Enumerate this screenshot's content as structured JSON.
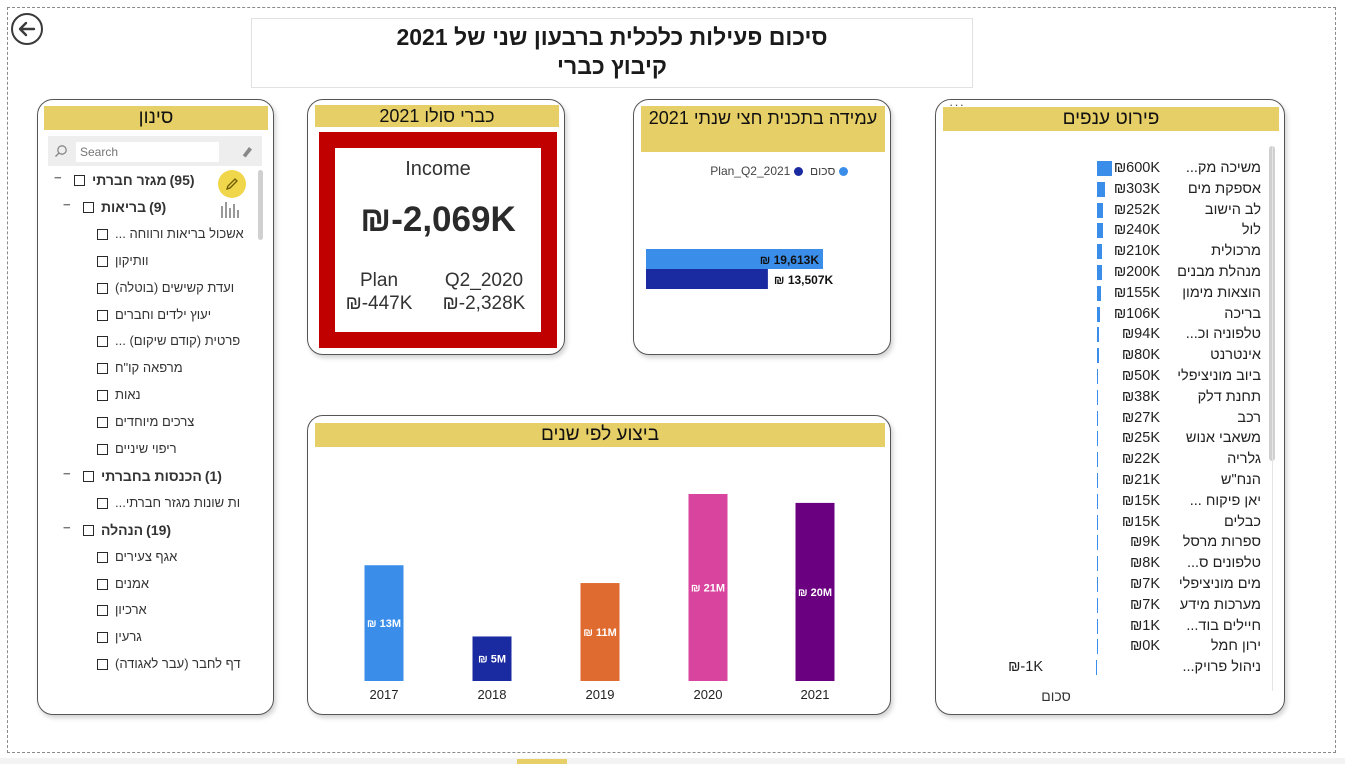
{
  "report": {
    "title_line1": "סיכום פעילות כלכלית ברבעון שני של 2021",
    "title_line2": "קיבוץ כברי"
  },
  "filter": {
    "header": "סינון",
    "search_placeholder": "Search",
    "items": [
      {
        "level": 0,
        "label": "מגזר חברתי",
        "count": "(95)",
        "expand": "−"
      },
      {
        "level": 1,
        "label": "בריאות",
        "count": "(9)",
        "expand": "−"
      },
      {
        "level": 2,
        "label": "אשכול בריאות ורווחה ..."
      },
      {
        "level": 2,
        "label": "וותיקון"
      },
      {
        "level": 2,
        "label": "ועדת קשישים (בוטלה)"
      },
      {
        "level": 2,
        "label": "יעוץ ילדים וחברים"
      },
      {
        "level": 2,
        "label": "פרטית (קודם שיקום) ..."
      },
      {
        "level": 2,
        "label": "מרפאה קו\"ח"
      },
      {
        "level": 2,
        "label": "נאות"
      },
      {
        "level": 2,
        "label": "צרכים מיוחדים"
      },
      {
        "level": 2,
        "label": "ריפוי שיניים"
      },
      {
        "level": 1,
        "label": "הכנסות בחברתי",
        "count": "(1)",
        "expand": "−"
      },
      {
        "level": 2,
        "label": "ות שונות מגזר חברתי..."
      },
      {
        "level": 1,
        "label": "הנהלה",
        "count": "(19)",
        "expand": "−"
      },
      {
        "level": 2,
        "label": "אגף צעירים"
      },
      {
        "level": 2,
        "label": "אמנים"
      },
      {
        "level": 2,
        "label": "ארכיון"
      },
      {
        "level": 2,
        "label": "גרעין"
      },
      {
        "level": 2,
        "label": "דף לחבר (עבר לאגודה)"
      }
    ]
  },
  "kpi": {
    "header": "כברי סולו 2021",
    "label": "Income",
    "value": "₪-2,069K",
    "plan_label": "Plan",
    "plan_value": "₪-447K",
    "prev_label": "Q2_2020",
    "prev_value": "₪-2,328K"
  },
  "plan_card": {
    "header": "עמידה בתכנית חצי שנתי 2021",
    "legend": [
      {
        "name": "סכום",
        "color": "#3a8eea"
      },
      {
        "name": "Plan_Q2_2021",
        "color": "#1a2aa0"
      }
    ]
  },
  "yearly_card": {
    "header": "ביצוע לפי שנים"
  },
  "branches": {
    "header": "פירוט ענפים",
    "menu_icon": "···",
    "footer_label": "סכום"
  },
  "colors": {
    "accent_header": "#e6cf66",
    "kpi_frame": "#c00000",
    "bar_blue": "#3a8eea",
    "bar_navy": "#1a2aa0"
  },
  "chart_data": [
    {
      "type": "bar",
      "orientation": "horizontal",
      "series": [
        {
          "name": "סכום",
          "values": [
            19613
          ],
          "labels": [
            "₪ 19,613K"
          ],
          "color": "#3a8eea"
        },
        {
          "name": "Plan_Q2_2021",
          "values": [
            13507
          ],
          "labels": [
            "₪ 13,507K"
          ],
          "color": "#1a2aa0"
        }
      ],
      "legend_position": "top"
    },
    {
      "type": "bar",
      "categories": [
        "2017",
        "2018",
        "2019",
        "2020",
        "2021"
      ],
      "values": [
        13,
        5,
        11,
        21,
        20
      ],
      "labels": [
        "₪ 13M",
        "₪ 5M",
        "₪ 11M",
        "₪ 21M",
        "₪ 20M"
      ],
      "colors": [
        "#3a8eea",
        "#1a2aa0",
        "#e06b30",
        "#d9449e",
        "#6a0080"
      ],
      "unit": "M"
    },
    {
      "type": "bar",
      "orientation": "horizontal",
      "categories": [
        "משיכה מק...",
        "אספקת מים",
        "לב הישוב",
        "לול",
        "מרכולית",
        "מנהלת מבנים",
        "הוצאות מימון",
        "בריכה",
        "טלפוניה וכ...",
        "אינטרנט",
        "ביוב מוניציפלי",
        "תחנת דלק",
        "רכב",
        "משאבי אנוש",
        "גלריה",
        "הנח\"ש",
        "יאן פיקוח ...",
        "כבלים",
        "ספרות מרסל",
        "טלפונים ס...",
        "מים מוניציפלי",
        "מערכות מידע",
        "חיילים בוד...",
        "ירון חמל",
        "ניהול פרויק..."
      ],
      "values": [
        600,
        303,
        252,
        240,
        210,
        200,
        155,
        106,
        94,
        80,
        50,
        38,
        27,
        25,
        22,
        21,
        15,
        15,
        9,
        8,
        7,
        7,
        1,
        0,
        -1
      ],
      "labels": [
        "₪600K",
        "₪303K",
        "₪252K",
        "₪240K",
        "₪210K",
        "₪200K",
        "₪155K",
        "₪106K",
        "₪94K",
        "₪80K",
        "₪50K",
        "₪38K",
        "₪27K",
        "₪25K",
        "₪22K",
        "₪21K",
        "₪15K",
        "₪15K",
        "₪9K",
        "₪8K",
        "₪7K",
        "₪7K",
        "₪1K",
        "₪0K",
        "₪-1K"
      ],
      "unit": "K",
      "color": "#3a8eea"
    }
  ]
}
